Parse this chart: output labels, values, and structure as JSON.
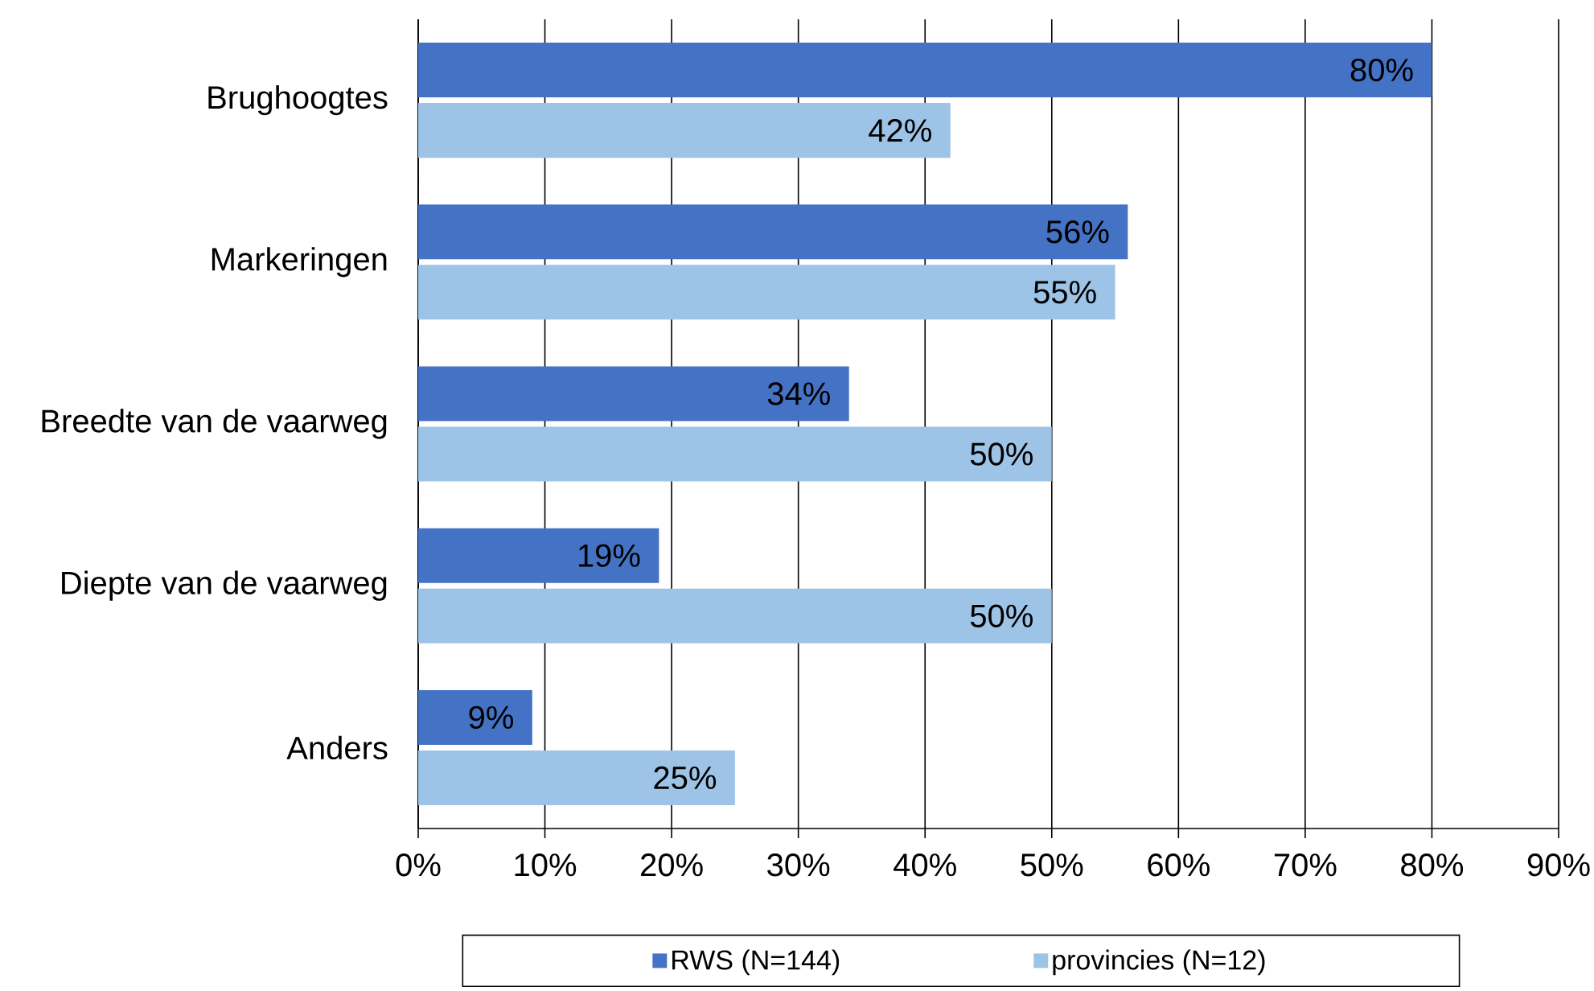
{
  "chart_data": {
    "type": "bar",
    "orientation": "horizontal",
    "categories": [
      "Brughoogtes",
      "Markeringen",
      "Breedte van de vaarweg",
      "Diepte van de vaarweg",
      "Anders"
    ],
    "series": [
      {
        "name": "RWS (N=144)",
        "color": "#4472c4",
        "values": [
          80,
          56,
          34,
          19,
          9
        ],
        "value_labels": [
          "80%",
          "56%",
          "34%",
          "19%",
          "9%"
        ]
      },
      {
        "name": "provincies (N=12)",
        "color": "#9dc3e6",
        "values": [
          42,
          55,
          50,
          50,
          25
        ],
        "value_labels": [
          "42%",
          "55%",
          "50%",
          "50%",
          "25%"
        ]
      }
    ],
    "xlim": [
      0,
      90
    ],
    "xticks": [
      {
        "value": 0,
        "label": "0%"
      },
      {
        "value": 10,
        "label": "10%"
      },
      {
        "value": 20,
        "label": "20%"
      },
      {
        "value": 30,
        "label": "30%"
      },
      {
        "value": 40,
        "label": "40%"
      },
      {
        "value": 50,
        "label": "50%"
      },
      {
        "value": 60,
        "label": "60%"
      },
      {
        "value": 70,
        "label": "70%"
      },
      {
        "value": 80,
        "label": "80%"
      },
      {
        "value": 90,
        "label": "90%"
      }
    ],
    "grid": "x",
    "legend": "bottom"
  }
}
